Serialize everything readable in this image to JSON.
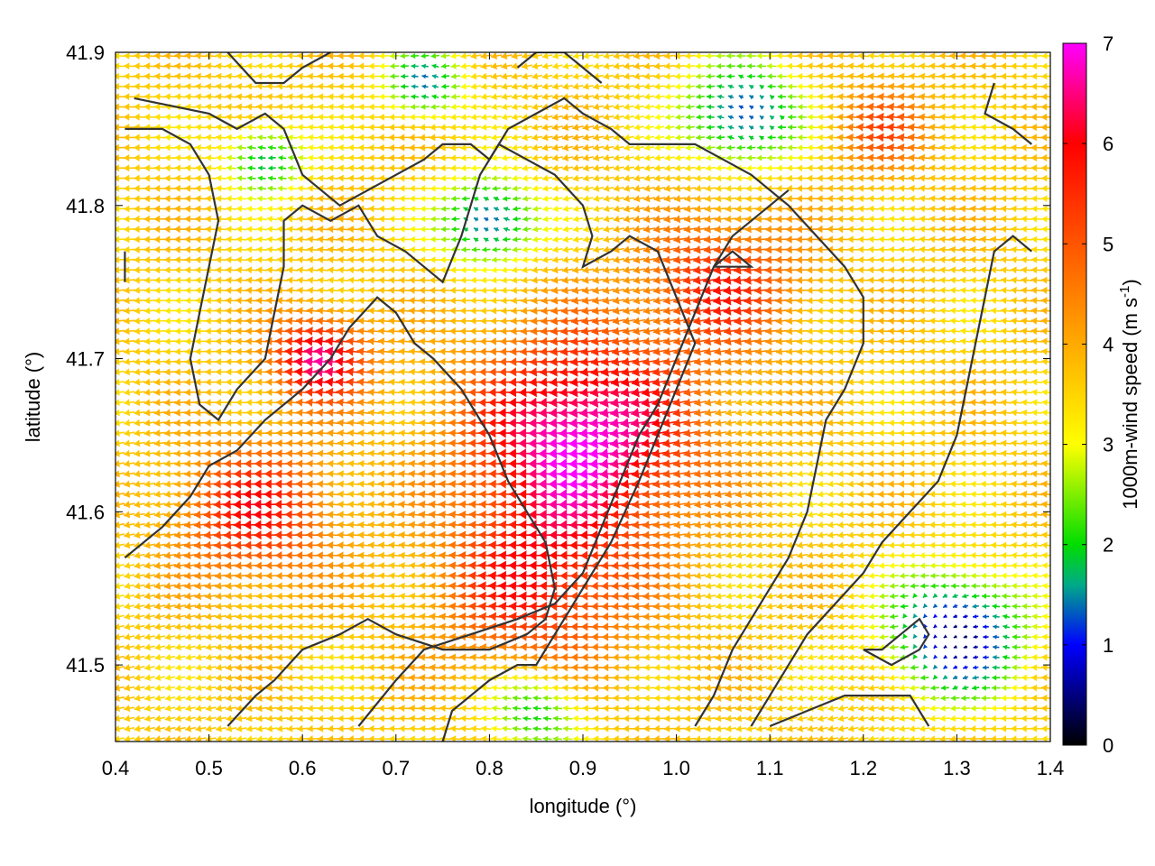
{
  "chart_data": {
    "type": "vector-field",
    "title": "",
    "xlabel": "longitude (°)",
    "ylabel": "latitude (°)",
    "colorbar_label": "1000m-wind speed (m s",
    "colorbar_label_sup": "-1",
    "colorbar_label_end": ")",
    "xlim": [
      0.4,
      1.4
    ],
    "ylim": [
      41.45,
      41.9
    ],
    "x_ticks": [
      0.4,
      0.5,
      0.6,
      0.7,
      0.8,
      0.9,
      1.0,
      1.1,
      1.2,
      1.3,
      1.4
    ],
    "x_tick_labels": [
      "0.4",
      "0.5",
      "0.6",
      "0.7",
      "0.8",
      "0.9",
      "1.0",
      "1.1",
      "1.2",
      "1.3",
      "1.4"
    ],
    "y_ticks": [
      41.5,
      41.6,
      41.7,
      41.8,
      41.9
    ],
    "y_tick_labels": [
      "41.5",
      "41.6",
      "41.7",
      "41.8",
      "41.9"
    ],
    "colorbar_range": [
      0,
      7
    ],
    "colorbar_ticks": [
      0,
      1,
      2,
      3,
      4,
      5,
      6,
      7
    ],
    "colorbar_tick_labels": [
      "0",
      "1",
      "2",
      "3",
      "4",
      "5",
      "6",
      "7"
    ],
    "colormap": [
      {
        "value": 0,
        "color": "#000000"
      },
      {
        "value": 1,
        "color": "#0000ff"
      },
      {
        "value": 1.6,
        "color": "#00aa88"
      },
      {
        "value": 2,
        "color": "#00dd00"
      },
      {
        "value": 3,
        "color": "#ffff00"
      },
      {
        "value": 4,
        "color": "#ffaa00"
      },
      {
        "value": 5,
        "color": "#ff5500"
      },
      {
        "value": 6,
        "color": "#ff0000"
      },
      {
        "value": 7,
        "color": "#ff00ff"
      }
    ],
    "wind_speed_maxima": [
      {
        "lon": 0.9,
        "lat": 41.65,
        "speed": 7.0,
        "radius": 0.12
      },
      {
        "lon": 0.62,
        "lat": 41.7,
        "speed": 6.6,
        "radius": 0.05
      },
      {
        "lon": 0.55,
        "lat": 41.6,
        "speed": 5.8,
        "radius": 0.08
      },
      {
        "lon": 0.85,
        "lat": 41.55,
        "speed": 5.6,
        "radius": 0.1
      },
      {
        "lon": 1.05,
        "lat": 41.75,
        "speed": 5.5,
        "radius": 0.08
      },
      {
        "lon": 1.22,
        "lat": 41.85,
        "speed": 5.0,
        "radius": 0.05
      }
    ],
    "wind_speed_minima": [
      {
        "lon": 1.3,
        "lat": 41.52,
        "speed": 0.4,
        "radius": 0.07
      },
      {
        "lon": 1.07,
        "lat": 41.86,
        "speed": 1.0,
        "radius": 0.06
      },
      {
        "lon": 0.8,
        "lat": 41.79,
        "speed": 1.0,
        "radius": 0.05
      },
      {
        "lon": 0.56,
        "lat": 41.83,
        "speed": 1.6,
        "radius": 0.04
      },
      {
        "lon": 0.73,
        "lat": 41.88,
        "speed": 1.4,
        "radius": 0.04
      },
      {
        "lon": 0.85,
        "lat": 41.47,
        "speed": 1.8,
        "radius": 0.05
      }
    ],
    "prevailing_direction_deg": 185,
    "contours": [
      [
        [
          0.42,
          41.87
        ],
        [
          0.5,
          41.86
        ],
        [
          0.53,
          41.85
        ],
        [
          0.56,
          41.86
        ],
        [
          0.58,
          41.85
        ],
        [
          0.6,
          41.82
        ],
        [
          0.62,
          41.81
        ],
        [
          0.64,
          41.8
        ],
        [
          0.67,
          41.81
        ],
        [
          0.7,
          41.82
        ],
        [
          0.73,
          41.83
        ],
        [
          0.75,
          41.84
        ],
        [
          0.78,
          41.84
        ],
        [
          0.8,
          41.83
        ],
        [
          0.82,
          41.85
        ],
        [
          0.85,
          41.86
        ],
        [
          0.88,
          41.87
        ],
        [
          0.9,
          41.86
        ],
        [
          0.93,
          41.85
        ],
        [
          0.95,
          41.84
        ],
        [
          0.98,
          41.84
        ],
        [
          1.02,
          41.84
        ],
        [
          1.05,
          41.83
        ],
        [
          1.08,
          41.82
        ],
        [
          1.12,
          41.8
        ],
        [
          1.15,
          41.78
        ],
        [
          1.18,
          41.76
        ],
        [
          1.2,
          41.74
        ],
        [
          1.2,
          41.71
        ],
        [
          1.18,
          41.68
        ],
        [
          1.16,
          41.66
        ],
        [
          1.15,
          41.63
        ],
        [
          1.14,
          41.6
        ],
        [
          1.12,
          41.57
        ],
        [
          1.09,
          41.54
        ],
        [
          1.06,
          41.51
        ],
        [
          1.04,
          41.48
        ],
        [
          1.02,
          41.46
        ]
      ],
      [
        [
          0.41,
          41.85
        ],
        [
          0.45,
          41.85
        ],
        [
          0.48,
          41.84
        ],
        [
          0.5,
          41.82
        ],
        [
          0.51,
          41.79
        ],
        [
          0.5,
          41.76
        ],
        [
          0.49,
          41.73
        ],
        [
          0.48,
          41.7
        ],
        [
          0.49,
          41.67
        ],
        [
          0.51,
          41.66
        ],
        [
          0.53,
          41.68
        ],
        [
          0.56,
          41.7
        ],
        [
          0.57,
          41.73
        ],
        [
          0.58,
          41.76
        ],
        [
          0.58,
          41.79
        ],
        [
          0.6,
          41.8
        ],
        [
          0.63,
          41.79
        ],
        [
          0.66,
          41.8
        ],
        [
          0.68,
          41.78
        ],
        [
          0.71,
          41.77
        ],
        [
          0.73,
          41.76
        ],
        [
          0.75,
          41.75
        ],
        [
          0.77,
          41.78
        ],
        [
          0.79,
          41.82
        ],
        [
          0.81,
          41.84
        ],
        [
          0.84,
          41.83
        ],
        [
          0.87,
          41.82
        ],
        [
          0.9,
          41.8
        ],
        [
          0.91,
          41.78
        ],
        [
          0.9,
          41.76
        ],
        [
          0.93,
          41.77
        ],
        [
          0.95,
          41.78
        ],
        [
          0.98,
          41.77
        ],
        [
          1.0,
          41.74
        ],
        [
          1.02,
          41.71
        ],
        [
          1.0,
          41.68
        ],
        [
          0.98,
          41.65
        ],
        [
          0.96,
          41.62
        ],
        [
          0.93,
          41.58
        ],
        [
          0.9,
          41.55
        ],
        [
          0.87,
          41.52
        ],
        [
          0.85,
          41.5
        ],
        [
          0.83,
          41.5
        ],
        [
          0.8,
          41.49
        ],
        [
          0.78,
          41.48
        ],
        [
          0.76,
          41.47
        ],
        [
          0.75,
          41.45
        ]
      ],
      [
        [
          0.41,
          41.57
        ],
        [
          0.45,
          41.59
        ],
        [
          0.48,
          41.61
        ],
        [
          0.5,
          41.63
        ],
        [
          0.53,
          41.64
        ],
        [
          0.56,
          41.66
        ],
        [
          0.6,
          41.68
        ],
        [
          0.63,
          41.7
        ],
        [
          0.65,
          41.72
        ],
        [
          0.68,
          41.74
        ],
        [
          0.7,
          41.73
        ],
        [
          0.72,
          41.71
        ],
        [
          0.74,
          41.7
        ],
        [
          0.77,
          41.68
        ],
        [
          0.8,
          41.65
        ],
        [
          0.82,
          41.62
        ],
        [
          0.84,
          41.6
        ],
        [
          0.86,
          41.58
        ],
        [
          0.87,
          41.55
        ],
        [
          0.86,
          41.53
        ],
        [
          0.84,
          41.52
        ],
        [
          0.8,
          41.51
        ],
        [
          0.75,
          41.51
        ],
        [
          0.7,
          41.52
        ],
        [
          0.67,
          41.53
        ],
        [
          0.64,
          41.52
        ],
        [
          0.6,
          41.51
        ],
        [
          0.57,
          41.49
        ],
        [
          0.55,
          41.48
        ],
        [
          0.52,
          41.46
        ]
      ],
      [
        [
          0.66,
          41.46
        ],
        [
          0.7,
          41.49
        ],
        [
          0.73,
          41.51
        ],
        [
          0.78,
          41.52
        ],
        [
          0.83,
          41.53
        ],
        [
          0.87,
          41.54
        ],
        [
          0.9,
          41.56
        ],
        [
          0.92,
          41.59
        ],
        [
          0.94,
          41.62
        ],
        [
          0.96,
          41.65
        ],
        [
          0.98,
          41.67
        ],
        [
          1.0,
          41.7
        ],
        [
          1.02,
          41.73
        ],
        [
          1.04,
          41.76
        ],
        [
          1.06,
          41.78
        ],
        [
          1.08,
          41.79
        ],
        [
          1.1,
          41.8
        ],
        [
          1.12,
          41.81
        ]
      ],
      [
        [
          1.38,
          41.77
        ],
        [
          1.36,
          41.78
        ],
        [
          1.34,
          41.77
        ],
        [
          1.33,
          41.74
        ],
        [
          1.32,
          41.71
        ],
        [
          1.31,
          41.68
        ],
        [
          1.3,
          41.65
        ],
        [
          1.28,
          41.62
        ],
        [
          1.25,
          41.6
        ],
        [
          1.22,
          41.58
        ],
        [
          1.2,
          41.56
        ],
        [
          1.17,
          41.54
        ],
        [
          1.14,
          41.52
        ],
        [
          1.12,
          41.5
        ],
        [
          1.1,
          41.48
        ],
        [
          1.08,
          41.46
        ]
      ],
      [
        [
          1.2,
          41.51
        ],
        [
          1.23,
          41.5
        ],
        [
          1.26,
          41.51
        ],
        [
          1.27,
          41.52
        ],
        [
          1.26,
          41.53
        ],
        [
          1.24,
          41.52
        ],
        [
          1.22,
          41.51
        ],
        [
          1.2,
          41.51
        ]
      ],
      [
        [
          1.1,
          41.46
        ],
        [
          1.14,
          41.47
        ],
        [
          1.18,
          41.48
        ],
        [
          1.22,
          41.48
        ],
        [
          1.25,
          41.48
        ],
        [
          1.27,
          41.46
        ]
      ],
      [
        [
          1.34,
          41.88
        ],
        [
          1.33,
          41.86
        ],
        [
          1.36,
          41.85
        ],
        [
          1.38,
          41.84
        ]
      ],
      [
        [
          0.52,
          41.9
        ],
        [
          0.55,
          41.88
        ],
        [
          0.58,
          41.88
        ],
        [
          0.6,
          41.89
        ],
        [
          0.63,
          41.9
        ]
      ],
      [
        [
          0.83,
          41.89
        ],
        [
          0.85,
          41.9
        ],
        [
          0.88,
          41.9
        ],
        [
          0.9,
          41.89
        ],
        [
          0.92,
          41.88
        ]
      ],
      [
        [
          0.41,
          41.77
        ],
        [
          0.41,
          41.75
        ]
      ],
      [
        [
          1.04,
          41.76
        ],
        [
          1.06,
          41.77
        ],
        [
          1.08,
          41.76
        ],
        [
          1.06,
          41.76
        ],
        [
          1.04,
          41.76
        ]
      ]
    ]
  }
}
